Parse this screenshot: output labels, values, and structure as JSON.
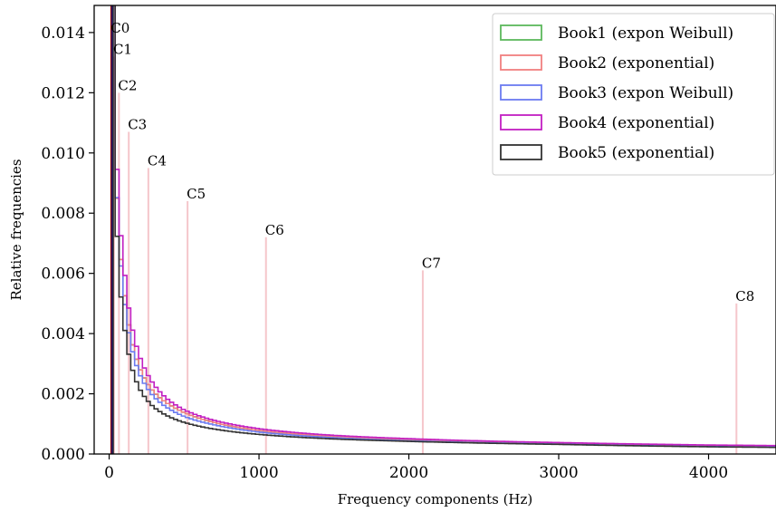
{
  "chart_data": {
    "type": "step-histogram",
    "xlabel": "Frequency components (Hz)",
    "ylabel": "Relative frequencies",
    "xlim": [
      -100,
      4450
    ],
    "ylim": [
      0.0,
      0.0149
    ],
    "x_ticks": [
      0,
      1000,
      2000,
      3000,
      4000
    ],
    "x_tick_labels": [
      "0",
      "1000",
      "2000",
      "3000",
      "4000"
    ],
    "y_ticks": [
      0.0,
      0.002,
      0.004,
      0.006,
      0.008,
      0.01,
      0.012,
      0.014
    ],
    "y_tick_labels": [
      "0.000",
      "0.002",
      "0.004",
      "0.006",
      "0.008",
      "0.010",
      "0.012",
      "0.014"
    ],
    "grid": false,
    "legend_position": "top-right",
    "series": [
      {
        "name": "Book1 (expon Weibull)",
        "color": "#5cb85c",
        "x": [
          40,
          100,
          200,
          300,
          400,
          500,
          700,
          1000,
          1500,
          2000,
          3000,
          4000,
          4450
        ],
        "y": [
          0.0103,
          0.0055,
          0.0029,
          0.00205,
          0.00165,
          0.00138,
          0.00105,
          0.00078,
          0.00058,
          0.00047,
          0.00035,
          0.00027,
          0.00025
        ]
      },
      {
        "name": "Book2 (exponential)",
        "color": "#f08080",
        "x": [
          40,
          100,
          200,
          300,
          400,
          500,
          700,
          1000,
          1500,
          2000,
          3000,
          4000,
          4450
        ],
        "y": [
          0.0103,
          0.0055,
          0.0029,
          0.00205,
          0.00165,
          0.00138,
          0.00105,
          0.00078,
          0.00058,
          0.00047,
          0.00035,
          0.00027,
          0.00025
        ]
      },
      {
        "name": "Book3 (expon Weibull)",
        "color": "#6b7bf0",
        "x": [
          40,
          100,
          200,
          300,
          400,
          500,
          700,
          1000,
          1500,
          2000,
          3000,
          4000,
          4450
        ],
        "y": [
          0.0106,
          0.0052,
          0.0027,
          0.0019,
          0.0015,
          0.00125,
          0.00097,
          0.00073,
          0.00054,
          0.00044,
          0.00033,
          0.00025,
          0.00023
        ]
      },
      {
        "name": "Book4 (exponential)",
        "color": "#c21fc2",
        "x": [
          40,
          100,
          200,
          300,
          400,
          500,
          700,
          1000,
          1500,
          2000,
          3000,
          4000,
          4450
        ],
        "y": [
          0.0114,
          0.0062,
          0.0033,
          0.0023,
          0.00178,
          0.00147,
          0.00112,
          0.00084,
          0.00062,
          0.00051,
          0.00038,
          0.0003,
          0.00028
        ]
      },
      {
        "name": "Book5 (exponential)",
        "color": "#333333",
        "x": [
          40,
          100,
          200,
          300,
          400,
          500,
          700,
          1000,
          1500,
          2000,
          3000,
          4000,
          4450
        ],
        "y": [
          0.0091,
          0.0043,
          0.0022,
          0.00155,
          0.00124,
          0.00105,
          0.00083,
          0.00065,
          0.0005,
          0.00042,
          0.00032,
          0.00024,
          0.00022
        ]
      }
    ],
    "annotations": [
      {
        "label": "C0",
        "x": 16.35,
        "y": 0.0139
      },
      {
        "label": "C1",
        "x": 32.7,
        "y": 0.0132
      },
      {
        "label": "C2",
        "x": 65.41,
        "y": 0.012
      },
      {
        "label": "C3",
        "x": 130.81,
        "y": 0.0107
      },
      {
        "label": "C4",
        "x": 261.63,
        "y": 0.0095
      },
      {
        "label": "C5",
        "x": 523.25,
        "y": 0.0084
      },
      {
        "label": "C6",
        "x": 1046.5,
        "y": 0.0072
      },
      {
        "label": "C7",
        "x": 2093.0,
        "y": 0.0061
      },
      {
        "label": "C8",
        "x": 4186.01,
        "y": 0.005
      }
    ],
    "annotation_line_color": "#f5c6cb",
    "spike_line": {
      "x": 20,
      "y_top": 0.0149,
      "colors": [
        "#8b0000",
        "#1a1a80",
        "#222222"
      ]
    }
  }
}
